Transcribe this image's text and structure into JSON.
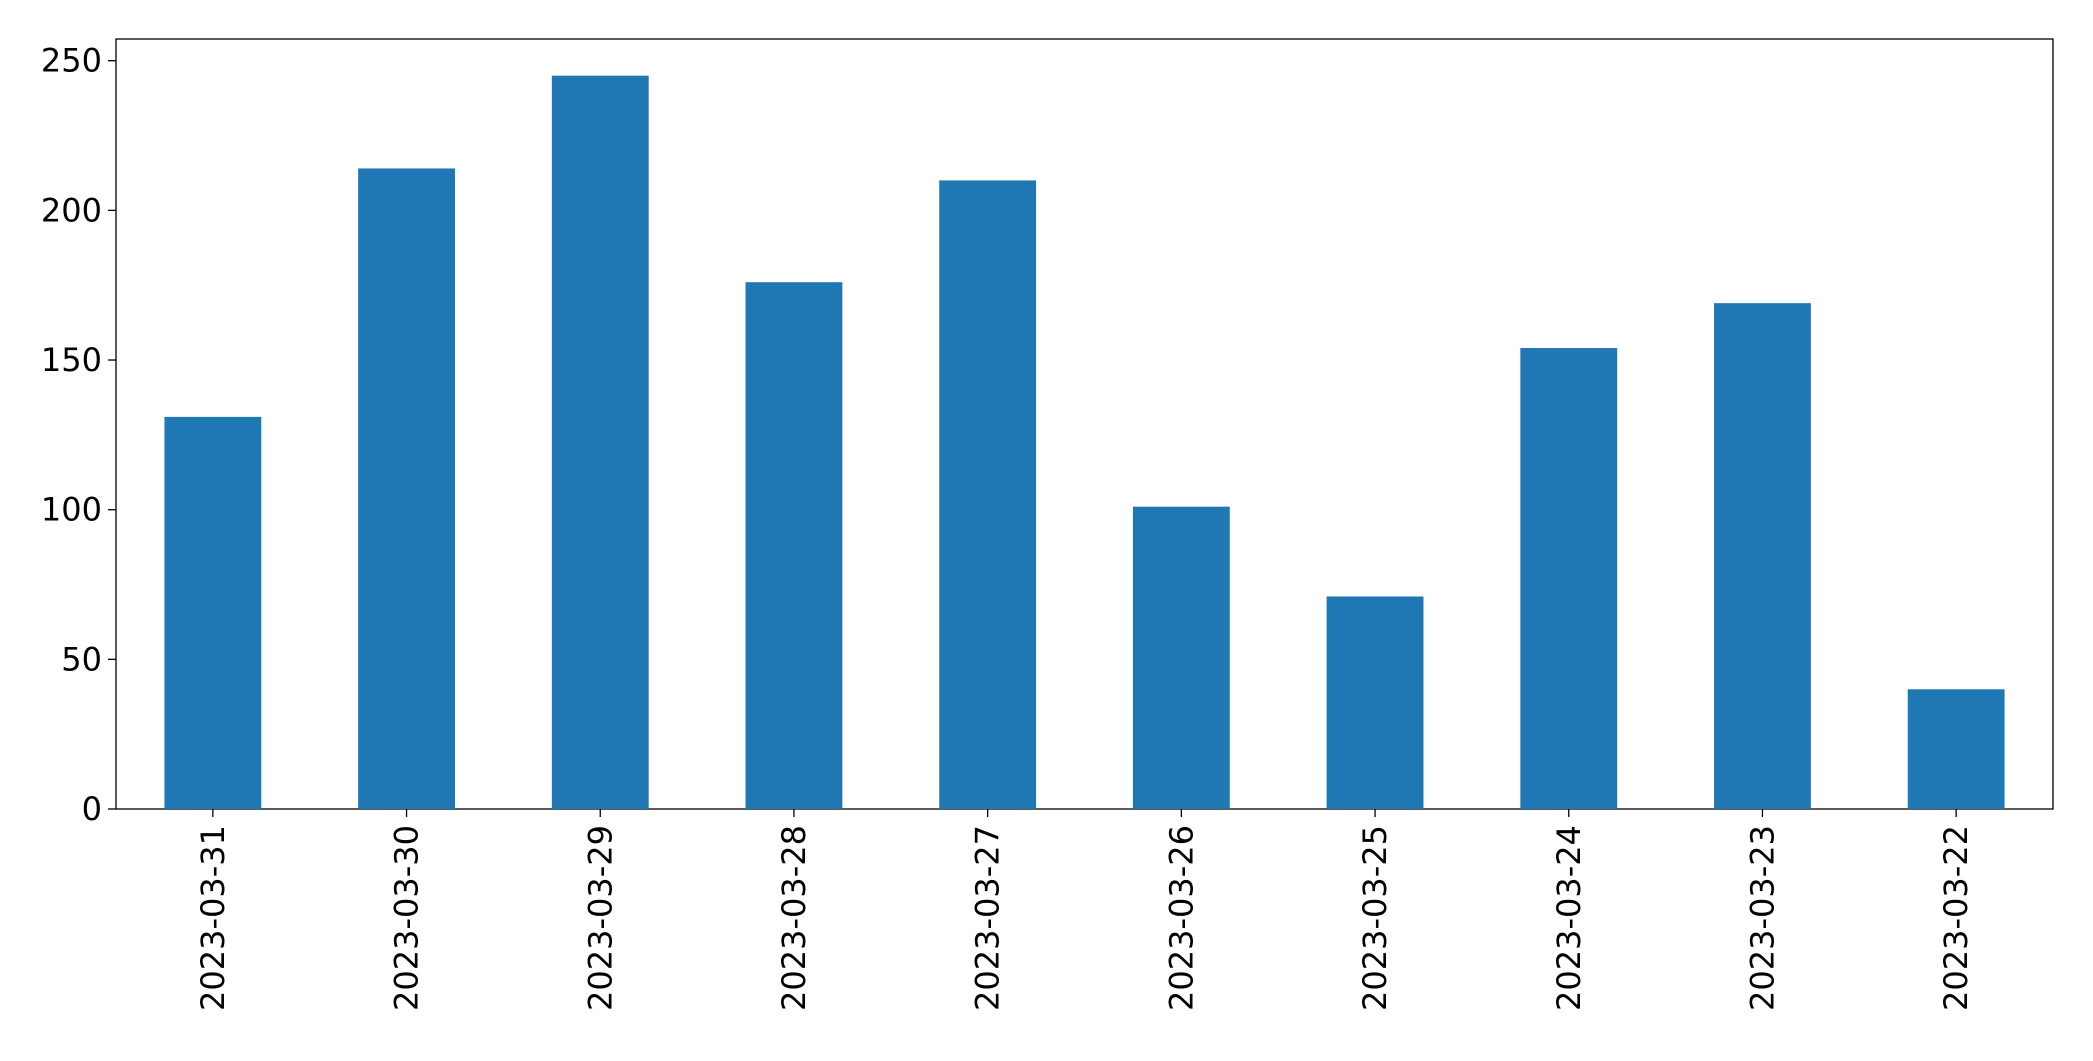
{
  "chart_data": {
    "type": "bar",
    "categories": [
      "2023-03-31",
      "2023-03-30",
      "2023-03-29",
      "2023-03-28",
      "2023-03-27",
      "2023-03-26",
      "2023-03-25",
      "2023-03-24",
      "2023-03-23",
      "2023-03-22"
    ],
    "values": [
      131,
      214,
      245,
      176,
      210,
      101,
      71,
      154,
      169,
      40
    ],
    "color": "#1f77b4",
    "ylim": [
      0,
      257.25
    ],
    "yticks": [
      0,
      50,
      100,
      150,
      200,
      250
    ],
    "grid": false
  }
}
